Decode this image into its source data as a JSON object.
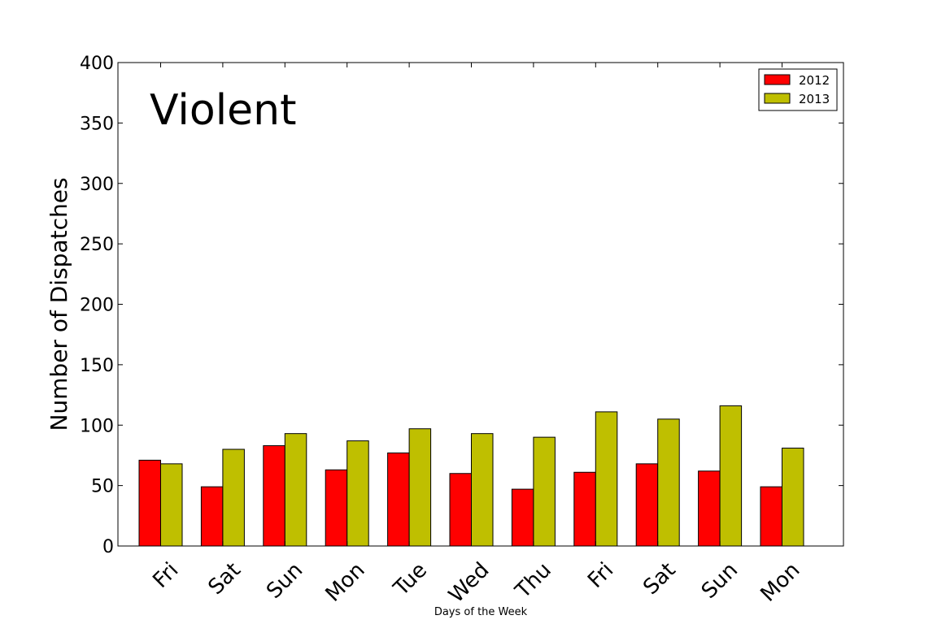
{
  "chart_data": {
    "type": "bar",
    "annotation": "Violent",
    "xlabel": "Days of the Week",
    "ylabel": "Number of Dispatches",
    "ylim": [
      0,
      400
    ],
    "yticks": [
      0,
      50,
      100,
      150,
      200,
      250,
      300,
      350,
      400
    ],
    "categories": [
      "Fri",
      "Sat",
      "Sun",
      "Mon",
      "Tue",
      "Wed",
      "Thu",
      "Fri",
      "Sat",
      "Sun",
      "Mon"
    ],
    "series": [
      {
        "name": "2012",
        "color": "#ff0000",
        "values": [
          71,
          49,
          83,
          63,
          77,
          60,
          47,
          61,
          68,
          62,
          49
        ]
      },
      {
        "name": "2013",
        "color": "#bfbf00",
        "values": [
          68,
          80,
          93,
          87,
          97,
          93,
          90,
          111,
          105,
          116,
          81
        ]
      }
    ],
    "legend_position": "top-right",
    "grid": false
  }
}
